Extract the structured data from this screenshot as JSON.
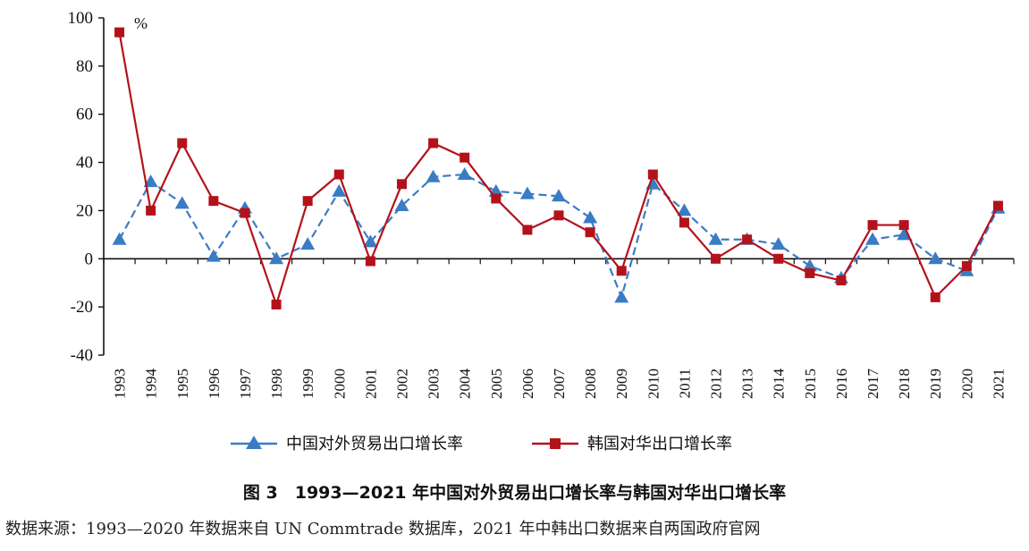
{
  "chart_data": {
    "type": "line",
    "x": [
      "1993",
      "1994",
      "1995",
      "1996",
      "1997",
      "1998",
      "1999",
      "2000",
      "2001",
      "2002",
      "2003",
      "2004",
      "2005",
      "2006",
      "2007",
      "2008",
      "2009",
      "2010",
      "2011",
      "2012",
      "2013",
      "2014",
      "2015",
      "2016",
      "2017",
      "2018",
      "2019",
      "2020",
      "2021"
    ],
    "series": [
      {
        "name": "中国对外贸易出口增长率",
        "color": "#3a7cc4",
        "marker": "triangle",
        "line_style": "dashed",
        "values": [
          8,
          32,
          23,
          1,
          21,
          0,
          6,
          28,
          7,
          22,
          34,
          35,
          28,
          27,
          26,
          17,
          -16,
          31,
          20,
          8,
          8,
          6,
          -3,
          -8,
          8,
          10,
          0,
          -5,
          21
        ]
      },
      {
        "name": "韩国对华出口增长率",
        "color": "#b4121b",
        "marker": "square",
        "line_style": "solid",
        "values": [
          94,
          20,
          48,
          24,
          19,
          -19,
          24,
          35,
          -1,
          31,
          48,
          42,
          25,
          12,
          18,
          11,
          -5,
          35,
          15,
          0,
          8,
          0,
          -6,
          -9,
          14,
          14,
          -16,
          -3,
          22
        ]
      }
    ],
    "ylim": [
      -40,
      100
    ],
    "yticks": [
      100,
      80,
      60,
      40,
      20,
      0,
      -20,
      -40
    ],
    "yunit": "%",
    "grid": false,
    "legend_position": "bottom"
  },
  "caption": "图 3　1993—2021 年中国对外贸易出口增长率与韩国对华出口增长率",
  "source": "数据来源：1993—2020 年数据来自 UN Commtrade 数据库，2021 年中韩出口数据来自两国政府官网"
}
